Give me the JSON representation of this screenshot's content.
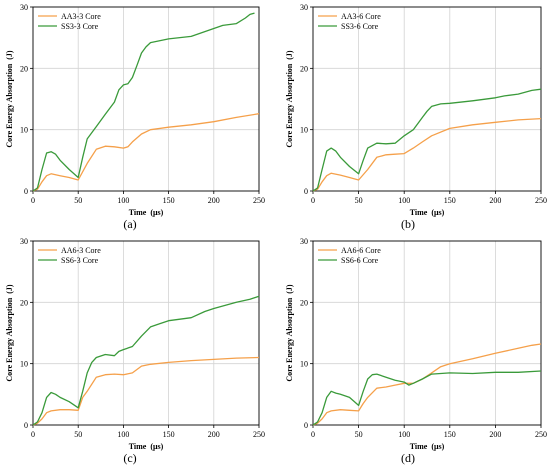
{
  "colors": {
    "orange": "#f5a04a",
    "green": "#3a9a3a",
    "grid": "#d3d3d3",
    "axis": "#000000"
  },
  "chart_data": [
    {
      "type": "line",
      "panel_label": "(a)",
      "xlabel": "Time  (μs)",
      "ylabel": "Core Energy Absorption  (J)",
      "xlim": [
        0,
        250
      ],
      "ylim": [
        0,
        30
      ],
      "xticks": [
        0,
        50,
        100,
        150,
        200,
        250
      ],
      "yticks": [
        0,
        10,
        20,
        30
      ],
      "grid": true,
      "legend": "top-left",
      "series": [
        {
          "name": "AA3-3 Core",
          "color": "orange",
          "x": [
            0,
            5,
            10,
            15,
            20,
            30,
            40,
            50,
            60,
            70,
            80,
            90,
            100,
            105,
            110,
            120,
            130,
            150,
            175,
            200,
            225,
            250
          ],
          "y": [
            0,
            0.3,
            1.5,
            2.5,
            2.8,
            2.5,
            2.2,
            1.8,
            4.5,
            6.8,
            7.3,
            7.2,
            7.0,
            7.2,
            8.0,
            9.3,
            10.0,
            10.4,
            10.8,
            11.3,
            12.0,
            12.6
          ]
        },
        {
          "name": "SS3-3 Core",
          "color": "green",
          "x": [
            0,
            5,
            10,
            15,
            20,
            25,
            30,
            40,
            50,
            55,
            60,
            70,
            80,
            90,
            95,
            100,
            105,
            110,
            115,
            120,
            125,
            130,
            140,
            150,
            175,
            200,
            210,
            225,
            235,
            240,
            245
          ],
          "y": [
            0,
            0.5,
            3.5,
            6.2,
            6.4,
            6.0,
            5.0,
            3.5,
            2.2,
            5.5,
            8.5,
            10.5,
            12.5,
            14.5,
            16.5,
            17.3,
            17.5,
            18.5,
            20.5,
            22.5,
            23.5,
            24.2,
            24.5,
            24.8,
            25.2,
            26.5,
            27.0,
            27.3,
            28.2,
            28.8,
            29.0
          ]
        }
      ]
    },
    {
      "type": "line",
      "panel_label": "(b)",
      "xlabel": "Time  (μs)",
      "ylabel": "Core Energy Absorption  (J)",
      "xlim": [
        0,
        250
      ],
      "ylim": [
        0,
        30
      ],
      "xticks": [
        0,
        50,
        100,
        150,
        200,
        250
      ],
      "yticks": [
        0,
        10,
        20,
        30
      ],
      "grid": true,
      "legend": "top-left",
      "series": [
        {
          "name": "AA3-6 Core",
          "color": "orange",
          "x": [
            0,
            5,
            10,
            15,
            20,
            30,
            40,
            50,
            60,
            70,
            80,
            90,
            100,
            110,
            120,
            130,
            150,
            175,
            200,
            225,
            250
          ],
          "y": [
            0,
            0.3,
            1.5,
            2.5,
            2.9,
            2.6,
            2.2,
            1.8,
            3.5,
            5.5,
            5.9,
            6.0,
            6.1,
            7.0,
            8.0,
            9.0,
            10.2,
            10.8,
            11.2,
            11.6,
            11.8
          ]
        },
        {
          "name": "SS3-6 Core",
          "color": "green",
          "x": [
            0,
            5,
            10,
            15,
            20,
            25,
            30,
            40,
            50,
            55,
            60,
            70,
            80,
            90,
            100,
            110,
            115,
            120,
            125,
            130,
            140,
            150,
            175,
            200,
            210,
            225,
            240,
            250
          ],
          "y": [
            0,
            0.5,
            3.5,
            6.5,
            7.0,
            6.5,
            5.5,
            4.0,
            2.8,
            5.0,
            7.0,
            7.8,
            7.7,
            7.8,
            9.0,
            10.0,
            11.0,
            12.0,
            13.0,
            13.8,
            14.2,
            14.3,
            14.7,
            15.2,
            15.5,
            15.8,
            16.4,
            16.6
          ]
        }
      ]
    },
    {
      "type": "line",
      "panel_label": "(c)",
      "xlabel": "Time  (μs)",
      "ylabel": "Core Energy Absorption  (J)",
      "xlim": [
        0,
        250
      ],
      "ylim": [
        0,
        30
      ],
      "xticks": [
        0,
        50,
        100,
        150,
        200,
        250
      ],
      "yticks": [
        0,
        10,
        20,
        30
      ],
      "grid": true,
      "legend": "top-left",
      "series": [
        {
          "name": "AA6-3 Core",
          "color": "orange",
          "x": [
            0,
            5,
            10,
            15,
            20,
            30,
            40,
            50,
            55,
            60,
            70,
            80,
            90,
            100,
            110,
            120,
            130,
            150,
            175,
            200,
            225,
            250
          ],
          "y": [
            0,
            0.3,
            1.0,
            2.0,
            2.3,
            2.5,
            2.5,
            2.4,
            4.5,
            5.5,
            7.8,
            8.2,
            8.3,
            8.2,
            8.5,
            9.6,
            9.9,
            10.2,
            10.5,
            10.7,
            10.9,
            11.0
          ]
        },
        {
          "name": "SS6-3 Core",
          "color": "green",
          "x": [
            0,
            5,
            10,
            15,
            20,
            25,
            30,
            40,
            50,
            55,
            60,
            65,
            70,
            80,
            90,
            95,
            100,
            110,
            120,
            130,
            140,
            150,
            175,
            190,
            200,
            225,
            240,
            250
          ],
          "y": [
            0,
            0.5,
            2.0,
            4.5,
            5.3,
            5.0,
            4.5,
            3.8,
            2.8,
            5.5,
            8.5,
            10.2,
            11.0,
            11.5,
            11.3,
            12.0,
            12.3,
            12.8,
            14.5,
            16.0,
            16.5,
            17.0,
            17.5,
            18.5,
            19.0,
            20.0,
            20.5,
            21.0
          ]
        }
      ]
    },
    {
      "type": "line",
      "panel_label": "(d)",
      "xlabel": "Time  (μs)",
      "ylabel": "Core Energy Absorption  (J)",
      "xlim": [
        0,
        250
      ],
      "ylim": [
        0,
        30
      ],
      "xticks": [
        0,
        50,
        100,
        150,
        200,
        250
      ],
      "yticks": [
        0,
        10,
        20,
        30
      ],
      "grid": true,
      "legend": "top-left",
      "series": [
        {
          "name": "AA6-6 Core",
          "color": "orange",
          "x": [
            0,
            5,
            10,
            15,
            20,
            30,
            40,
            50,
            55,
            60,
            70,
            80,
            90,
            100,
            110,
            120,
            130,
            140,
            150,
            175,
            200,
            225,
            240,
            250
          ],
          "y": [
            0,
            0.3,
            1.0,
            2.0,
            2.3,
            2.5,
            2.4,
            2.3,
            3.5,
            4.5,
            6.0,
            6.2,
            6.5,
            6.8,
            6.8,
            7.5,
            8.5,
            9.5,
            10.0,
            10.8,
            11.7,
            12.5,
            13.0,
            13.2
          ]
        },
        {
          "name": "SS6-6 Core",
          "color": "green",
          "x": [
            0,
            5,
            10,
            15,
            20,
            25,
            30,
            40,
            50,
            55,
            60,
            65,
            70,
            80,
            90,
            100,
            105,
            110,
            120,
            130,
            150,
            175,
            200,
            225,
            250
          ],
          "y": [
            0,
            0.5,
            2.0,
            4.5,
            5.5,
            5.2,
            5.0,
            4.5,
            3.2,
            5.5,
            7.5,
            8.2,
            8.3,
            7.8,
            7.3,
            7.0,
            6.5,
            6.8,
            7.5,
            8.3,
            8.5,
            8.4,
            8.6,
            8.6,
            8.8
          ]
        }
      ]
    }
  ]
}
